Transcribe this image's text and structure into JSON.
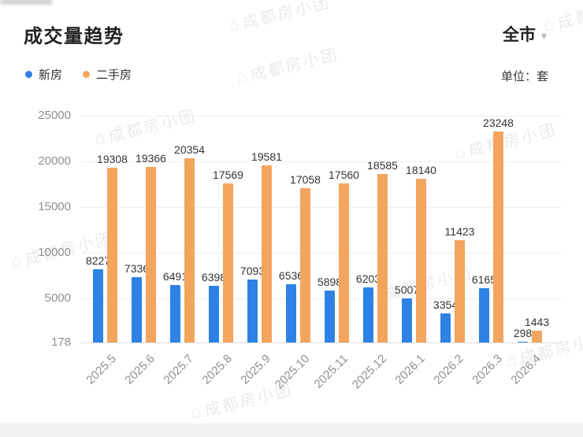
{
  "header": {
    "title": "成交量趋势",
    "region_selector": "全市",
    "unit_label": "单位：套"
  },
  "icons": {
    "chevron_down": "▾",
    "house": "⌂"
  },
  "watermark": {
    "text": "成都房小团"
  },
  "chart_data": {
    "type": "bar",
    "title": "成交量趋势",
    "unit": "套",
    "categories": [
      "2025.5",
      "2025.6",
      "2025.7",
      "2025.8",
      "2025.9",
      "2025.10",
      "2025.11",
      "2025.12",
      "2026.1",
      "2026.2",
      "2026.3",
      "2026.4"
    ],
    "series": [
      {
        "name": "新房",
        "color": "#2e82e6",
        "values": [
          8227,
          7336,
          6491,
          6398,
          7093,
          6536,
          5898,
          6203,
          5007,
          3354,
          6165,
          298
        ]
      },
      {
        "name": "二手房",
        "color": "#f3a55d",
        "values": [
          19308,
          19366,
          20354,
          17569,
          19581,
          17058,
          17560,
          18585,
          18140,
          11423,
          23248,
          1443
        ]
      }
    ],
    "y_ticks": [
      25000,
      20000,
      15000,
      10000,
      5000,
      178
    ],
    "ylim": [
      178,
      25000
    ],
    "xlabel": "",
    "ylabel": "套",
    "grid": true,
    "legend_position": "top-left",
    "xlabel_rotation": -45,
    "value_labels": true
  }
}
